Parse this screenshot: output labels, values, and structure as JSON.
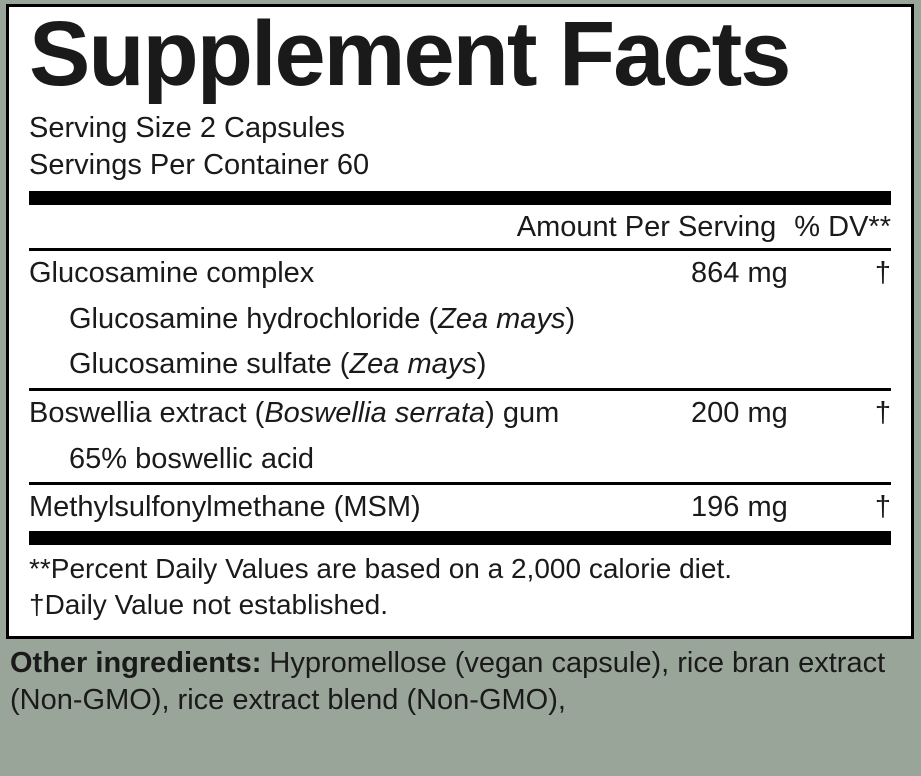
{
  "title": "Supplement Facts",
  "serving_size": "Serving Size 2 Capsules",
  "servings_per_container": "Servings Per Container 60",
  "header": {
    "amount": "Amount Per Serving",
    "dv": "% DV**"
  },
  "rows": [
    {
      "name": "Glucosamine complex",
      "amount": "864 mg",
      "dv": "†",
      "subs": [
        {
          "pre": "Glucosamine hydrochloride (",
          "it": "Zea mays",
          "post": ")"
        },
        {
          "pre": "Glucosamine sulfate (",
          "it": "Zea mays",
          "post": ")"
        }
      ]
    },
    {
      "name_pre": "Boswellia extract (",
      "name_it": "Boswellia serrata",
      "name_post": ") gum",
      "amount": "200 mg",
      "dv": "†",
      "subs": [
        {
          "pre": "65% boswellic acid",
          "it": "",
          "post": ""
        }
      ]
    },
    {
      "name": "Methylsulfonylmethane (MSM)",
      "amount": "196 mg",
      "dv": "†"
    }
  ],
  "footnote1": "**Percent Daily Values are based on a 2,000 calorie diet.",
  "footnote2": "†Daily Value not established.",
  "other_label": "Other ingredients: ",
  "other_text": "Hypromellose (vegan capsule), rice bran extract (Non-GMO), rice extract blend (Non-GMO),"
}
